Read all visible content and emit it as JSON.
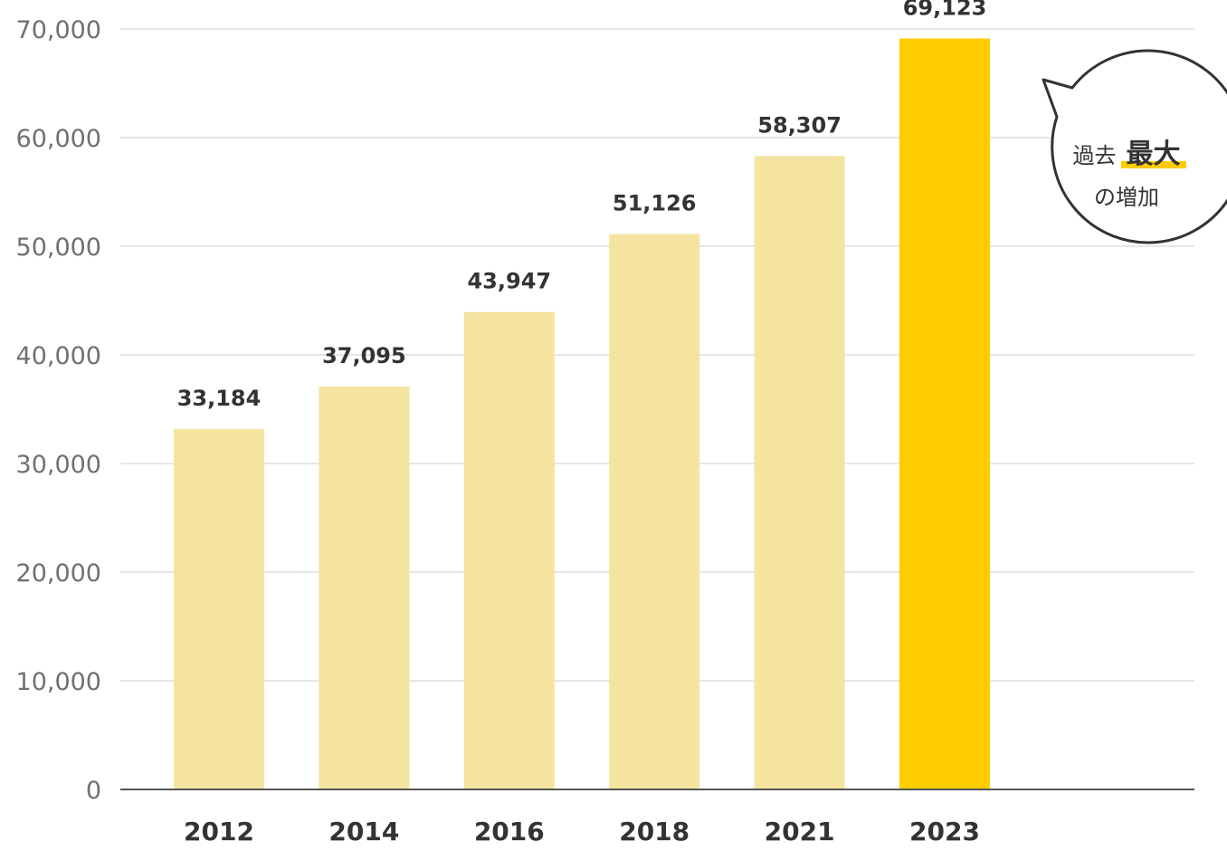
{
  "chart_data": {
    "type": "bar",
    "categories": [
      "2012",
      "2014",
      "2016",
      "2018",
      "2021",
      "2023"
    ],
    "values": [
      33184,
      37095,
      43947,
      51126,
      58307,
      69123
    ],
    "value_labels": [
      "33,184",
      "37,095",
      "43,947",
      "51,126",
      "58,307",
      "69,123"
    ],
    "title": "",
    "xlabel": "",
    "ylabel": "",
    "ylim": [
      0,
      70000
    ],
    "yticks": [
      0,
      10000,
      20000,
      30000,
      40000,
      50000,
      60000,
      70000
    ],
    "ytick_labels": [
      "0",
      "10,000",
      "20,000",
      "30,000",
      "40,000",
      "50,000",
      "60,000",
      "70,000"
    ],
    "grid": true,
    "highlight_index": 5,
    "colors": {
      "bar": "#F4E4A0",
      "highlight": "#FFCC00",
      "grid": "#DDDDDD",
      "axis": "#555555",
      "underline": "#FFCC00"
    }
  },
  "callout": {
    "line1_prefix": "過去",
    "line1_emphasis": "最大",
    "line2": "の増加"
  }
}
